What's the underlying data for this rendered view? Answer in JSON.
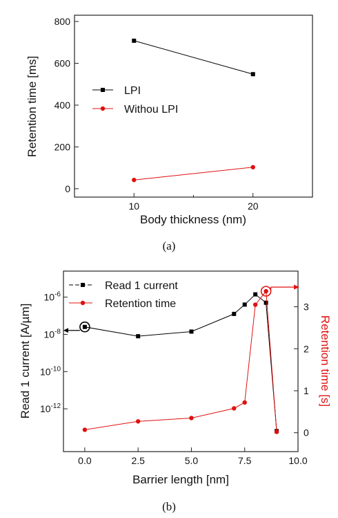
{
  "chart_data": [
    {
      "type": "line",
      "xlabel": "Body thickness (nm)",
      "ylabel": "Retention time [ms]",
      "xlim": [
        5,
        25
      ],
      "ylim": [
        -40,
        830
      ],
      "xticks": [
        10,
        20
      ],
      "yticks": [
        0,
        200,
        400,
        600,
        800
      ],
      "legend_position": "middle-left",
      "grid": false,
      "caption": "(a)",
      "series": [
        {
          "name": "LPI",
          "x": [
            10,
            20
          ],
          "values": [
            708,
            548
          ],
          "color": "#000000",
          "marker": "square"
        },
        {
          "name": "Withou LPI",
          "x": [
            10,
            20
          ],
          "values": [
            42,
            103
          ],
          "color": "#e01010",
          "marker": "circle"
        }
      ]
    },
    {
      "type": "line",
      "xlabel": "Barrier length [nm]",
      "ylabel": "Read 1 current [A/µm]",
      "y2label": "Retention time [s]",
      "xlim": [
        -1,
        10
      ],
      "xticks": [
        "0.0",
        "2.5",
        "5.0",
        "7.5",
        "10.0"
      ],
      "y_log_exponents": [
        -6,
        -8,
        -10,
        -12
      ],
      "y_log_label_base": "10",
      "y_log_range_exponents": [
        -14.3,
        -4.6
      ],
      "y2lim": [
        -0.45,
        3.85
      ],
      "y2ticks": [
        0,
        1,
        2,
        3
      ],
      "legend_position": "top-left",
      "grid": false,
      "caption": "(b)",
      "series": [
        {
          "name": "Read 1 current",
          "axis": "left",
          "x": [
            0,
            2.5,
            5,
            7,
            7.5,
            8,
            8.5,
            9
          ],
          "log10_values": [
            -7.6,
            -8.1,
            -7.85,
            -6.9,
            -6.4,
            -5.85,
            -6.3,
            -13.2
          ],
          "color": "#000000",
          "marker": "square",
          "arrow_marker_x": 0,
          "arrow_direction": "left"
        },
        {
          "name": "Retention time",
          "axis": "right",
          "x": [
            0,
            2.5,
            5,
            7,
            7.5,
            8,
            8.5,
            9
          ],
          "values": [
            0.07,
            0.27,
            0.35,
            0.58,
            0.72,
            3.05,
            3.37,
            0.02
          ],
          "color": "#e01010",
          "marker": "circle",
          "arrow_marker_x": 8.5,
          "arrow_direction": "right"
        }
      ]
    }
  ]
}
